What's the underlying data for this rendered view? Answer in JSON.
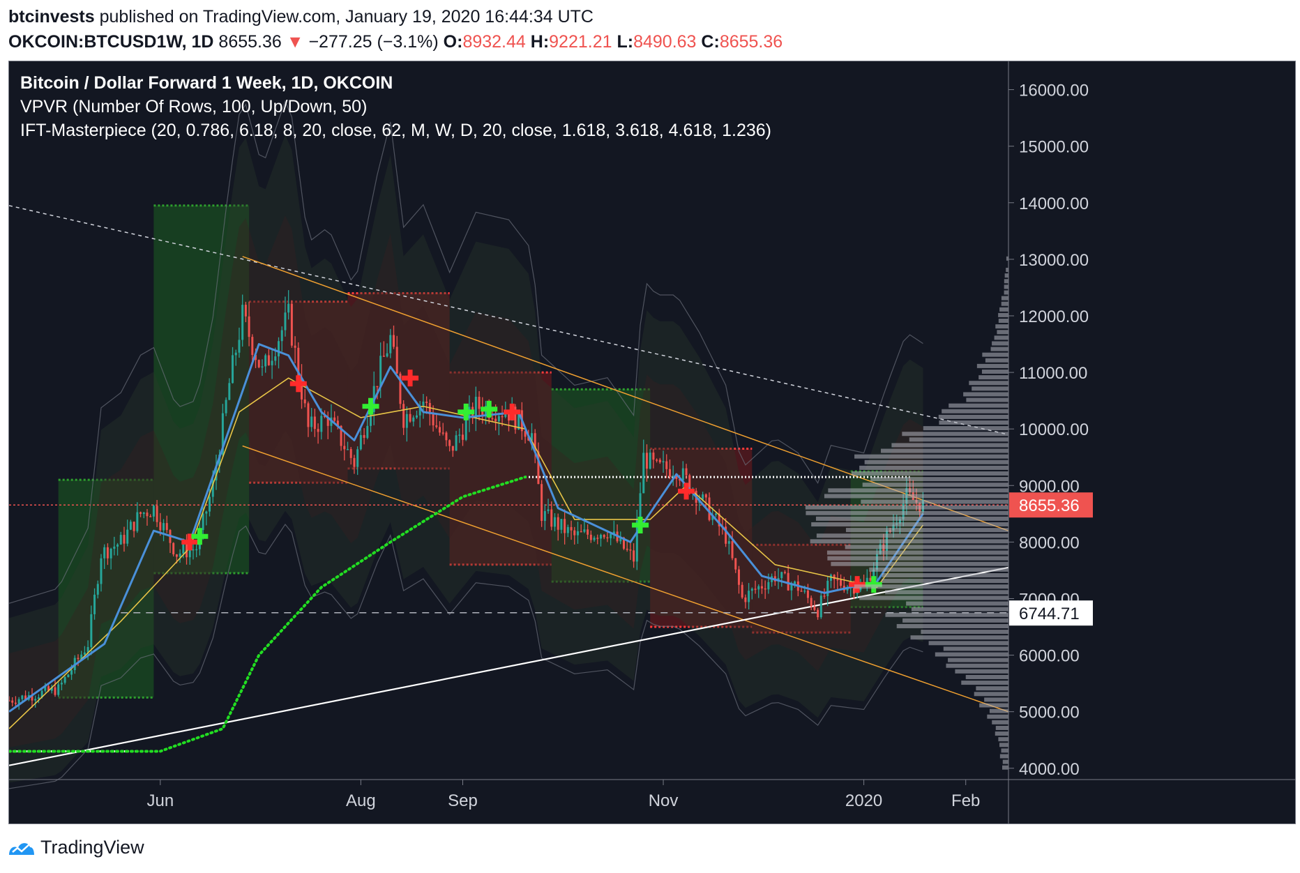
{
  "header": {
    "author": "btcinvests",
    "published": "published on TradingView.com, January 19, 2020 16:44:34 UTC",
    "symbol": "OKCOIN:BTCUSD1W, 1D",
    "price": "8655.36",
    "change_arrow": "▼",
    "change": "−277.25 (−3.1%)",
    "o_label": "O:",
    "o_value": "8932.44",
    "h_label": "H:",
    "h_value": "9221.21",
    "l_label": "L:",
    "l_value": "8490.63",
    "c_label": "C:",
    "c_value": "8655.36"
  },
  "legend": {
    "title": "Bitcoin / Dollar Forward 1 Week, 1D, OKCOIN",
    "indicator1": "VPVR (Number Of Rows, 100, Up/Down, 50)",
    "indicator2": "IFT-Masterpiece (20, 0.786, 6.18, 8, 20, close, 62, M, W, D, 20, close, 1.618, 3.618, 4.618, 1.236)"
  },
  "footer": {
    "brand": "TradingView",
    "logo_icon": "tradingview-logo-icon"
  },
  "colors": {
    "background": "#131722",
    "up": "#26a69a",
    "down": "#ef5350",
    "ema_blue": "#4a90d9",
    "ema_yellow": "#e8c547",
    "channel": "#f0a030",
    "support": "#ffffff",
    "dots_green": "#22dd22",
    "box_green": "#1b5e20",
    "box_red": "#7f1a1a"
  },
  "chart_data": {
    "type": "candlestick",
    "y_axis": {
      "ticks": [
        "16000.00",
        "15000.00",
        "14000.00",
        "13000.00",
        "12000.00",
        "11000.00",
        "10000.00",
        "9000.00",
        "8000.00",
        "7000.00",
        "6000.00",
        "5000.00",
        "4000.00"
      ],
      "range": [
        3800,
        16500
      ]
    },
    "x_axis": {
      "labels": [
        {
          "label": "Jun",
          "date": "2019-06-01"
        },
        {
          "label": "Aug",
          "date": "2019-08-01"
        },
        {
          "label": "Sep",
          "date": "2019-09-01"
        },
        {
          "label": "Nov",
          "date": "2019-11-01"
        },
        {
          "label": "2020",
          "date": "2020-01-01"
        },
        {
          "label": "Feb",
          "date": "2020-02-01"
        }
      ],
      "range": [
        "2019-04-16",
        "2020-02-14"
      ]
    },
    "price_labels": [
      {
        "value": 8655.36,
        "text": "8655.36",
        "color": "#ef5350"
      },
      {
        "value": 6744.71,
        "text": "6744.71",
        "color": "#ffffff"
      }
    ],
    "keypoints": [
      {
        "date": "2019-04-16",
        "price": 5200
      },
      {
        "date": "2019-05-01",
        "price": 5400
      },
      {
        "date": "2019-05-10",
        "price": 6200
      },
      {
        "date": "2019-05-14",
        "price": 7800
      },
      {
        "date": "2019-05-20",
        "price": 8000
      },
      {
        "date": "2019-05-26",
        "price": 8500
      },
      {
        "date": "2019-05-30",
        "price": 8600
      },
      {
        "date": "2019-06-06",
        "price": 7800
      },
      {
        "date": "2019-06-12",
        "price": 7900
      },
      {
        "date": "2019-06-17",
        "price": 9000
      },
      {
        "date": "2019-06-22",
        "price": 10800
      },
      {
        "date": "2019-06-26",
        "price": 12000
      },
      {
        "date": "2019-07-02",
        "price": 11000
      },
      {
        "date": "2019-07-10",
        "price": 12000
      },
      {
        "date": "2019-07-16",
        "price": 10000
      },
      {
        "date": "2019-07-22",
        "price": 10200
      },
      {
        "date": "2019-07-30",
        "price": 9400
      },
      {
        "date": "2019-08-06",
        "price": 10900
      },
      {
        "date": "2019-08-10",
        "price": 11600
      },
      {
        "date": "2019-08-14",
        "price": 10200
      },
      {
        "date": "2019-08-20",
        "price": 10500
      },
      {
        "date": "2019-08-28",
        "price": 9600
      },
      {
        "date": "2019-09-05",
        "price": 10400
      },
      {
        "date": "2019-09-15",
        "price": 10300
      },
      {
        "date": "2019-09-22",
        "price": 9900
      },
      {
        "date": "2019-09-25",
        "price": 8500
      },
      {
        "date": "2019-10-05",
        "price": 8100
      },
      {
        "date": "2019-10-15",
        "price": 8200
      },
      {
        "date": "2019-10-23",
        "price": 7700
      },
      {
        "date": "2019-10-26",
        "price": 9500
      },
      {
        "date": "2019-10-30",
        "price": 9300
      },
      {
        "date": "2019-11-05",
        "price": 9300
      },
      {
        "date": "2019-11-12",
        "price": 8800
      },
      {
        "date": "2019-11-20",
        "price": 8100
      },
      {
        "date": "2019-11-25",
        "price": 7000
      },
      {
        "date": "2019-12-05",
        "price": 7400
      },
      {
        "date": "2019-12-12",
        "price": 7200
      },
      {
        "date": "2019-12-18",
        "price": 6800
      },
      {
        "date": "2019-12-22",
        "price": 7300
      },
      {
        "date": "2020-01-01",
        "price": 7200
      },
      {
        "date": "2020-01-08",
        "price": 8100
      },
      {
        "date": "2020-01-14",
        "price": 8800
      },
      {
        "date": "2020-01-19",
        "price": 8655
      }
    ],
    "ema_blue": [
      {
        "date": "2019-04-16",
        "price": 5000
      },
      {
        "date": "2019-05-15",
        "price": 6200
      },
      {
        "date": "2019-05-30",
        "price": 8200
      },
      {
        "date": "2019-06-10",
        "price": 8000
      },
      {
        "date": "2019-06-22",
        "price": 10000
      },
      {
        "date": "2019-07-01",
        "price": 11500
      },
      {
        "date": "2019-07-10",
        "price": 11300
      },
      {
        "date": "2019-07-20",
        "price": 10300
      },
      {
        "date": "2019-07-30",
        "price": 9800
      },
      {
        "date": "2019-08-10",
        "price": 11100
      },
      {
        "date": "2019-08-20",
        "price": 10300
      },
      {
        "date": "2019-09-01",
        "price": 10200
      },
      {
        "date": "2019-09-18",
        "price": 10300
      },
      {
        "date": "2019-09-30",
        "price": 8600
      },
      {
        "date": "2019-10-22",
        "price": 8000
      },
      {
        "date": "2019-11-05",
        "price": 9200
      },
      {
        "date": "2019-11-20",
        "price": 8200
      },
      {
        "date": "2019-12-01",
        "price": 7400
      },
      {
        "date": "2019-12-20",
        "price": 7100
      },
      {
        "date": "2020-01-05",
        "price": 7300
      },
      {
        "date": "2020-01-19",
        "price": 8500
      }
    ],
    "ema_yellow": [
      {
        "date": "2019-04-16",
        "price": 4700
      },
      {
        "date": "2019-05-20",
        "price": 6600
      },
      {
        "date": "2019-06-10",
        "price": 7900
      },
      {
        "date": "2019-06-25",
        "price": 10300
      },
      {
        "date": "2019-07-10",
        "price": 10900
      },
      {
        "date": "2019-08-01",
        "price": 10200
      },
      {
        "date": "2019-08-20",
        "price": 10400
      },
      {
        "date": "2019-09-20",
        "price": 10000
      },
      {
        "date": "2019-10-05",
        "price": 8400
      },
      {
        "date": "2019-10-28",
        "price": 8400
      },
      {
        "date": "2019-11-08",
        "price": 9000
      },
      {
        "date": "2019-12-05",
        "price": 7600
      },
      {
        "date": "2020-01-05",
        "price": 7200
      },
      {
        "date": "2020-01-19",
        "price": 8300
      }
    ],
    "green_dots": [
      {
        "date": "2019-04-16",
        "price": 4300
      },
      {
        "date": "2019-06-01",
        "price": 4300
      },
      {
        "date": "2019-06-20",
        "price": 4700
      },
      {
        "date": "2019-07-01",
        "price": 6000
      },
      {
        "date": "2019-07-20",
        "price": 7200
      },
      {
        "date": "2019-08-10",
        "price": 8000
      },
      {
        "date": "2019-09-01",
        "price": 8800
      },
      {
        "date": "2019-09-20",
        "price": 9150
      }
    ],
    "white_dots": [
      {
        "date": "2019-04-16",
        "price": 4300
      },
      {
        "date": "2019-05-25",
        "price": 4300
      },
      {
        "date": "2019-09-20",
        "price": 9150
      },
      {
        "date": "2020-01-15",
        "price": 9150
      }
    ],
    "boxes": [
      {
        "start": "2019-05-01",
        "end": "2019-05-30",
        "top": 9100,
        "bottom": 5250,
        "color": "green"
      },
      {
        "start": "2019-05-30",
        "end": "2019-06-28",
        "top": 13950,
        "bottom": 7450,
        "color": "green"
      },
      {
        "start": "2019-06-28",
        "end": "2019-07-28",
        "top": 12250,
        "bottom": 9050,
        "color": "red"
      },
      {
        "start": "2019-07-28",
        "end": "2019-08-28",
        "top": 12400,
        "bottom": 9300,
        "color": "red"
      },
      {
        "start": "2019-08-28",
        "end": "2019-09-28",
        "top": 11000,
        "bottom": 7600,
        "color": "red"
      },
      {
        "start": "2019-09-28",
        "end": "2019-10-28",
        "top": 10700,
        "bottom": 7300,
        "color": "green"
      },
      {
        "start": "2019-10-28",
        "end": "2019-11-28",
        "top": 9650,
        "bottom": 6500,
        "color": "red"
      },
      {
        "start": "2019-11-28",
        "end": "2019-12-28",
        "top": 7950,
        "bottom": 6400,
        "color": "red"
      },
      {
        "start": "2019-12-28",
        "end": "2020-01-19",
        "top": 9250,
        "bottom": 6850,
        "color": "green"
      }
    ],
    "trendlines": [
      {
        "kind": "resistance-dashed",
        "from": {
          "date": "2019-04-16",
          "price": 13950
        },
        "to": {
          "date": "2020-02-14",
          "price": 9900
        }
      },
      {
        "kind": "channel-upper",
        "from": {
          "date": "2019-06-26",
          "price": 13050
        },
        "to": {
          "date": "2020-02-14",
          "price": 8200
        }
      },
      {
        "kind": "channel-lower",
        "from": {
          "date": "2019-06-26",
          "price": 9700
        },
        "to": {
          "date": "2020-02-14",
          "price": 5000
        }
      },
      {
        "kind": "support",
        "from": {
          "date": "2019-04-16",
          "price": 4050
        },
        "to": {
          "date": "2020-02-14",
          "price": 7550
        }
      },
      {
        "kind": "horizontal-dashed",
        "from": {
          "date": "2019-05-20",
          "price": 6750
        },
        "to": {
          "date": "2020-02-14",
          "price": 6750
        }
      },
      {
        "kind": "last-price-dotted",
        "from": {
          "date": "2019-04-16",
          "price": 8655
        },
        "to": {
          "date": "2020-02-14",
          "price": 8655
        }
      }
    ],
    "signals": [
      {
        "date": "2019-06-10",
        "price": 8000,
        "color": "red"
      },
      {
        "date": "2019-06-13",
        "price": 8100,
        "color": "green"
      },
      {
        "date": "2019-07-13",
        "price": 10800,
        "color": "red"
      },
      {
        "date": "2019-08-04",
        "price": 10400,
        "color": "green"
      },
      {
        "date": "2019-08-16",
        "price": 10900,
        "color": "red"
      },
      {
        "date": "2019-09-02",
        "price": 10300,
        "color": "green"
      },
      {
        "date": "2019-09-09",
        "price": 10350,
        "color": "green"
      },
      {
        "date": "2019-09-16",
        "price": 10300,
        "color": "red"
      },
      {
        "date": "2019-10-25",
        "price": 8300,
        "color": "green"
      },
      {
        "date": "2019-11-08",
        "price": 8900,
        "color": "red"
      },
      {
        "date": "2019-12-30",
        "price": 7250,
        "color": "red"
      },
      {
        "date": "2020-01-04",
        "price": 7250,
        "color": "green"
      }
    ],
    "volume_profile_note": "VPVR histogram on right edge, heaviest near 7000–10000"
  }
}
